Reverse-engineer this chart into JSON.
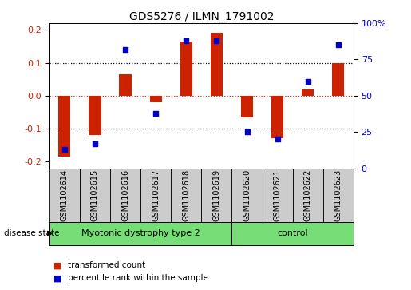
{
  "title": "GDS5276 / ILMN_1791002",
  "samples": [
    "GSM1102614",
    "GSM1102615",
    "GSM1102616",
    "GSM1102617",
    "GSM1102618",
    "GSM1102619",
    "GSM1102620",
    "GSM1102621",
    "GSM1102622",
    "GSM1102623"
  ],
  "red_values": [
    -0.185,
    -0.12,
    0.065,
    -0.02,
    0.165,
    0.19,
    -0.065,
    -0.13,
    0.02,
    0.1
  ],
  "blue_values": [
    13,
    17,
    82,
    38,
    88,
    88,
    25,
    20,
    60,
    85
  ],
  "group1_label": "Myotonic dystrophy type 2",
  "group1_indices": [
    0,
    5
  ],
  "group2_label": "control",
  "group2_indices": [
    6,
    9
  ],
  "disease_state_label": "disease state",
  "left_yticks": [
    -0.2,
    -0.1,
    0.0,
    0.1,
    0.2
  ],
  "right_yticks": [
    0,
    25,
    50,
    75,
    100
  ],
  "ylim": [
    -0.22,
    0.22
  ],
  "red_color": "#CC2200",
  "blue_color": "#0000CC",
  "bar_width": 0.4,
  "legend_red": "transformed count",
  "legend_blue": "percentile rank within the sample",
  "group_color": "#77DD77",
  "label_box_color": "#CCCCCC",
  "tick_label_color_left": "#CC2200",
  "tick_label_color_right": "#0000CC"
}
